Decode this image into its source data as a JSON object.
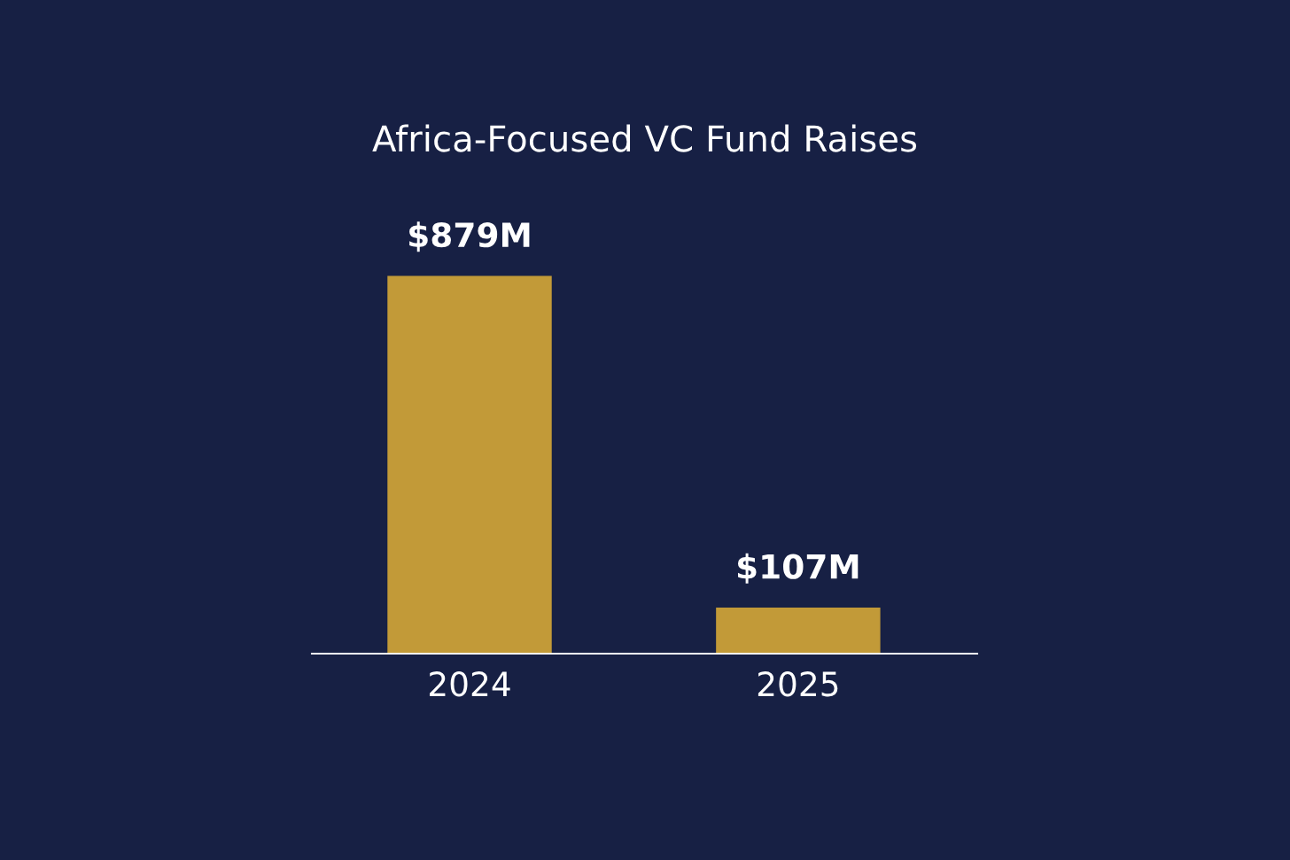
{
  "chart_data": {
    "type": "bar",
    "title": "Africa-Focused VC Fund Raises",
    "categories": [
      "2024",
      "2025"
    ],
    "values": [
      879,
      107
    ],
    "color": "#c29a38",
    "value_labels": [
      "$879M",
      "$107M"
    ]
  }
}
